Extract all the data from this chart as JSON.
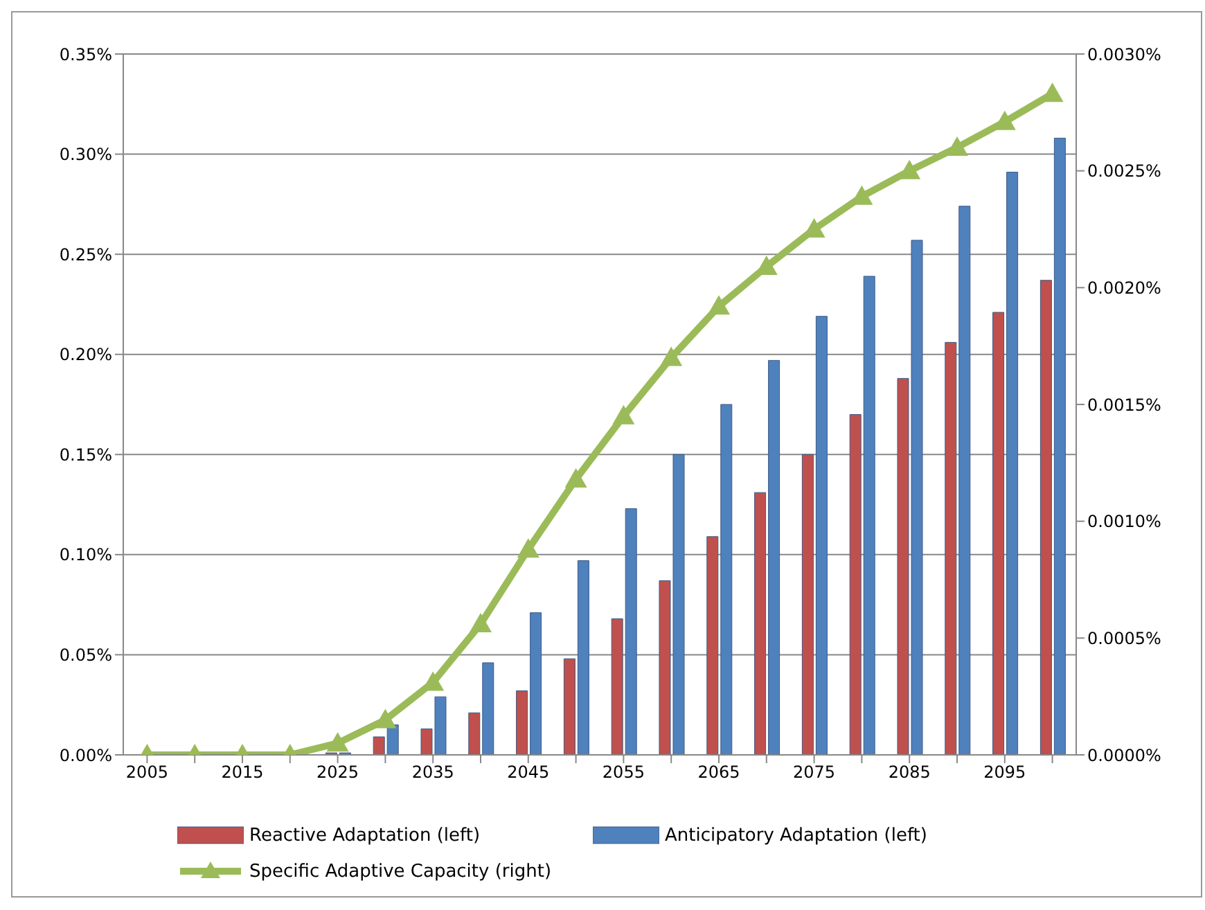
{
  "chart_data": {
    "type": "bar",
    "categories": [
      "2005",
      null,
      "2015",
      null,
      "2025",
      null,
      "2035",
      null,
      "2045",
      null,
      "2055",
      null,
      "2065",
      null,
      "2075",
      null,
      "2085",
      null,
      "2095",
      null
    ],
    "series": [
      {
        "name": "Reactive Adaptation (left)",
        "color": "#c0504d",
        "values": [
          0,
          0,
          0,
          0,
          0.001,
          0.009,
          0.013,
          0.021,
          0.032,
          0.048,
          0.068,
          0.087,
          0.109,
          0.131,
          0.15,
          0.17,
          0.188,
          0.206,
          0.221,
          0.237
        ]
      },
      {
        "name": "Anticipatory Adaptation (left)",
        "color": "#4f81bd",
        "values": [
          0,
          0,
          0,
          0,
          0.001,
          0.015,
          0.029,
          0.046,
          0.071,
          0.097,
          0.123,
          0.15,
          0.175,
          0.197,
          0.219,
          0.239,
          0.257,
          0.274,
          0.291,
          0.308
        ]
      },
      {
        "name": "Specific Adaptive Capacity (right)",
        "type": "line",
        "axis": "y2",
        "color": "#9bbb59",
        "marker": "triangle",
        "values": [
          0,
          0,
          0,
          0,
          5e-05,
          0.00015,
          0.00031,
          0.00056,
          0.00088,
          0.00118,
          0.00145,
          0.0017,
          0.00192,
          0.00209,
          0.00225,
          0.00239,
          0.0025,
          0.0026,
          0.00271,
          0.00283
        ]
      }
    ],
    "ylim": [
      0,
      0.35
    ],
    "yticks": [
      {
        "value": 0,
        "label": "0.00%"
      },
      {
        "value": 0.05,
        "label": "0.05%"
      },
      {
        "value": 0.1,
        "label": "0.10%"
      },
      {
        "value": 0.15,
        "label": "0.15%"
      },
      {
        "value": 0.2,
        "label": "0.20%"
      },
      {
        "value": 0.25,
        "label": "0.25%"
      },
      {
        "value": 0.3,
        "label": "0.30%"
      },
      {
        "value": 0.35,
        "label": "0.35%"
      }
    ],
    "y2lim": [
      0,
      0.003
    ],
    "y2ticks": [
      {
        "value": 0,
        "label": "0.0000%"
      },
      {
        "value": 0.0005,
        "label": "0.0005%"
      },
      {
        "value": 0.001,
        "label": "0.0010%"
      },
      {
        "value": 0.0015,
        "label": "0.0015%"
      },
      {
        "value": 0.002,
        "label": "0.0020%"
      },
      {
        "value": 0.0025,
        "label": "0.0025%"
      },
      {
        "value": 0.003,
        "label": "0.0030%"
      }
    ],
    "grid": "y",
    "legend": "bottom"
  }
}
